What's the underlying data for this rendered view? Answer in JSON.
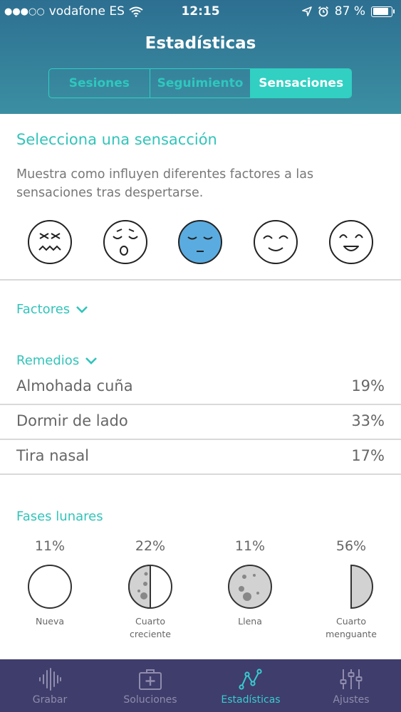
{
  "status": {
    "carrier": "vodafone ES",
    "time": "12:15",
    "battery": "87 %",
    "battery_level": 0.87
  },
  "header": {
    "title": "Estadísticas",
    "tabs": [
      {
        "label": "Sesiones",
        "active": false
      },
      {
        "label": "Seguimiento",
        "active": false
      },
      {
        "label": "Sensaciones",
        "active": true
      }
    ]
  },
  "sensations": {
    "title": "Selecciona una sensacción",
    "description": "Muestra como influyen diferentes factores a las sensaciones tras despertarse.",
    "faces": [
      {
        "icon": "face-awful-icon",
        "selected": false
      },
      {
        "icon": "face-tired-icon",
        "selected": false
      },
      {
        "icon": "face-neutral-icon",
        "selected": true
      },
      {
        "icon": "face-content-icon",
        "selected": false
      },
      {
        "icon": "face-happy-icon",
        "selected": false
      }
    ]
  },
  "factors": {
    "label": "Factores"
  },
  "remedies": {
    "label": "Remedios",
    "items": [
      {
        "label": "Almohada cuña",
        "value": "19%"
      },
      {
        "label": "Dormir de lado",
        "value": "33%"
      },
      {
        "label": "Tira nasal",
        "value": "17%"
      }
    ]
  },
  "moon": {
    "label": "Fases lunares",
    "phases": [
      {
        "percent": "11%",
        "name_line1": "Nueva",
        "name_line2": "",
        "icon": "moon-new-icon"
      },
      {
        "percent": "22%",
        "name_line1": "Cuarto",
        "name_line2": "creciente",
        "icon": "moon-waxing-icon"
      },
      {
        "percent": "11%",
        "name_line1": "Llena",
        "name_line2": "",
        "icon": "moon-full-icon"
      },
      {
        "percent": "56%",
        "name_line1": "Cuarto",
        "name_line2": "menguante",
        "icon": "moon-waning-icon"
      }
    ]
  },
  "tabbar": {
    "items": [
      {
        "label": "Grabar",
        "icon": "waveform-icon",
        "active": false
      },
      {
        "label": "Soluciones",
        "icon": "first-aid-kit-icon",
        "active": false
      },
      {
        "label": "Estadísticas",
        "icon": "stats-line-icon",
        "active": true
      },
      {
        "label": "Ajustes",
        "icon": "sliders-icon",
        "active": false
      }
    ]
  },
  "colors": {
    "accent": "#32c4ba",
    "header_top": "#2d6f91",
    "selected_face": "#5aace0",
    "tabbar_bg": "#3f3d6b",
    "tab_active": "#36cdd0"
  }
}
